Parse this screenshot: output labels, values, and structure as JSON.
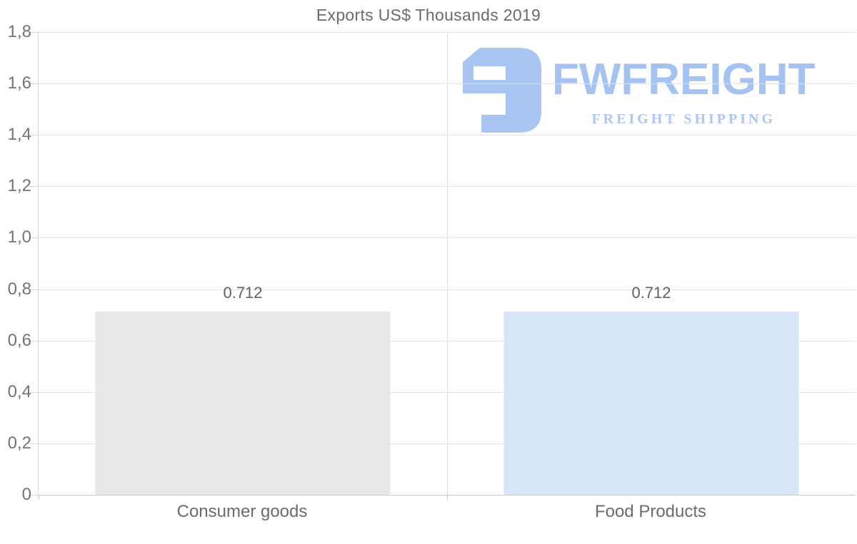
{
  "chart_data": {
    "type": "bar",
    "title": "Exports US$ Thousands 2019",
    "categories": [
      "Consumer goods",
      "Food Products"
    ],
    "values": [
      0.712,
      0.712
    ],
    "value_labels": [
      "0.712",
      "0.712"
    ],
    "series": [
      {
        "name": "Consumer goods",
        "value": 0.712,
        "color": "#e8e8e8",
        "patterned": false
      },
      {
        "name": "Food Products",
        "value": 0.712,
        "color": "#d7e6f7",
        "patterned": true
      }
    ],
    "xlabel": "",
    "ylabel": "",
    "ylim": [
      0,
      1.8
    ],
    "yticks": [
      {
        "label": "1,8",
        "value": 1.8
      },
      {
        "label": "1,6",
        "value": 1.6
      },
      {
        "label": "1,4",
        "value": 1.4
      },
      {
        "label": "1,2",
        "value": 1.2
      },
      {
        "label": "1,0",
        "value": 1.0
      },
      {
        "label": "0,8",
        "value": 0.8
      },
      {
        "label": "0,6",
        "value": 0.6
      },
      {
        "label": "0,4",
        "value": 0.4
      },
      {
        "label": "0,2",
        "value": 0.2
      },
      {
        "label": "0",
        "value": 0
      }
    ],
    "grid": true,
    "legend": false
  },
  "watermark": {
    "brand": "FWFREIGHT",
    "tagline": "FREIGHT SHIPPING",
    "logo_color": "#a8c5f2",
    "brand_color": "#a5c3f1",
    "tagline_color": "#aec6f0"
  },
  "colors": {
    "background": "#ffffff",
    "title_text": "#6b6b6b",
    "axis_text": "#757575",
    "value_text": "#616161",
    "gridline": "#e3e3e3",
    "axis_line": "#c9c9c9"
  }
}
